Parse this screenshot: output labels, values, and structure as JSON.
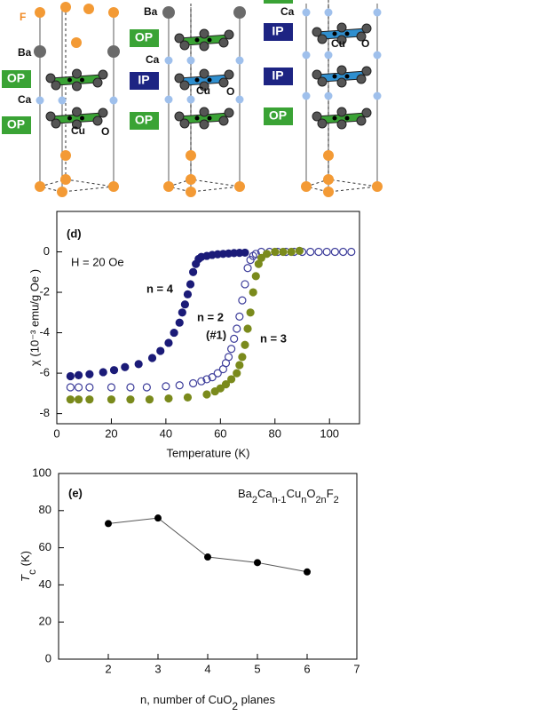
{
  "diagram": {
    "structures": [
      {
        "labels": [
          "F",
          "Ba",
          "OP",
          "Ca",
          "OP",
          "Cu",
          "O"
        ]
      },
      {
        "labels": [
          "Ba",
          "OP",
          "Ca",
          "IP",
          "Cu",
          "O",
          "OP"
        ]
      },
      {
        "labels": [
          "Ca",
          "IP",
          "Cu",
          "O",
          "IP",
          "OP"
        ]
      }
    ]
  },
  "chart_data": [
    {
      "type": "scatter",
      "panel": "(d)",
      "annotations": [
        "H = 20 Oe",
        "n = 4",
        "n = 2",
        "(#1)",
        "n = 3"
      ],
      "x_label": "Temperature (K)",
      "y_label": "χ  (10⁻³  emu/g Oe )",
      "xlim": [
        0,
        111
      ],
      "xticks": [
        0,
        20,
        40,
        60,
        80,
        100
      ],
      "ylim": [
        -8.5,
        2
      ],
      "yticks": [
        -8,
        -6,
        -4,
        -2,
        0
      ],
      "series": [
        {
          "color": "#1b1b78",
          "markerfacecolor": "#1b1b78",
          "x": [
            5,
            8,
            12,
            17,
            21,
            25,
            30,
            35,
            38,
            41,
            43,
            45,
            46,
            47,
            48,
            49,
            50,
            51,
            52,
            53,
            55,
            57,
            59,
            61,
            63,
            65,
            67,
            69
          ],
          "values": [
            -6.15,
            -6.1,
            -6.05,
            -5.95,
            -5.85,
            -5.7,
            -5.55,
            -5.25,
            -4.9,
            -4.5,
            -4.0,
            -3.5,
            -3.0,
            -2.6,
            -2.1,
            -1.6,
            -1.0,
            -0.6,
            -0.35,
            -0.25,
            -0.2,
            -0.15,
            -0.12,
            -0.1,
            -0.08,
            -0.06,
            -0.05,
            -0.04
          ]
        },
        {
          "color": "#3c3c9a",
          "markerfacecolor": "none",
          "x": [
            5,
            8,
            12,
            20,
            27,
            33,
            40,
            45,
            50,
            53,
            55,
            57,
            59,
            61,
            62,
            63,
            64,
            65,
            66,
            67,
            68,
            69,
            70,
            71,
            72,
            73,
            75,
            78,
            81,
            84,
            87,
            90,
            93,
            96,
            99,
            102,
            105,
            108
          ],
          "values": [
            -6.7,
            -6.7,
            -6.7,
            -6.7,
            -6.7,
            -6.7,
            -6.65,
            -6.6,
            -6.5,
            -6.4,
            -6.3,
            -6.2,
            -6.0,
            -5.8,
            -5.5,
            -5.2,
            -4.8,
            -4.3,
            -3.8,
            -3.2,
            -2.4,
            -1.6,
            -0.8,
            -0.4,
            -0.2,
            -0.1,
            0,
            0,
            0,
            0,
            0,
            0,
            0,
            0,
            0,
            0,
            0,
            0
          ]
        },
        {
          "color": "#7a8a1c",
          "markerfacecolor": "#7a8a1c",
          "x": [
            5,
            8,
            12,
            20,
            27,
            34,
            41,
            48,
            55,
            58,
            60,
            62,
            64,
            66,
            67,
            68,
            69,
            70,
            71,
            72,
            73,
            74,
            75,
            77,
            80,
            83,
            86,
            89
          ],
          "values": [
            -7.3,
            -7.3,
            -7.3,
            -7.3,
            -7.3,
            -7.3,
            -7.25,
            -7.2,
            -7.05,
            -6.9,
            -6.75,
            -6.55,
            -6.3,
            -6.0,
            -5.6,
            -5.2,
            -4.6,
            -3.8,
            -3.0,
            -2.0,
            -1.2,
            -0.6,
            -0.3,
            -0.1,
            0,
            0,
            0,
            0.05
          ]
        }
      ]
    },
    {
      "type": "line",
      "panel": "(e)",
      "formula": [
        "Ba",
        "2",
        "Ca",
        "n-1",
        "Cu",
        "n",
        "O",
        "2n",
        "F",
        "2"
      ],
      "x_label": [
        "n, number of CuO",
        "2",
        " planes"
      ],
      "y_label": [
        "T",
        "c",
        " (K)"
      ],
      "xlim": [
        1,
        7
      ],
      "xticks": [
        2,
        3,
        4,
        5,
        6,
        7
      ],
      "ylim": [
        0,
        100
      ],
      "yticks": [
        0,
        20,
        40,
        60,
        80,
        100
      ],
      "x": [
        2,
        3,
        4,
        5,
        6
      ],
      "series": [
        {
          "color": "#000000",
          "values": [
            73,
            76,
            55,
            52,
            47
          ]
        }
      ]
    }
  ]
}
